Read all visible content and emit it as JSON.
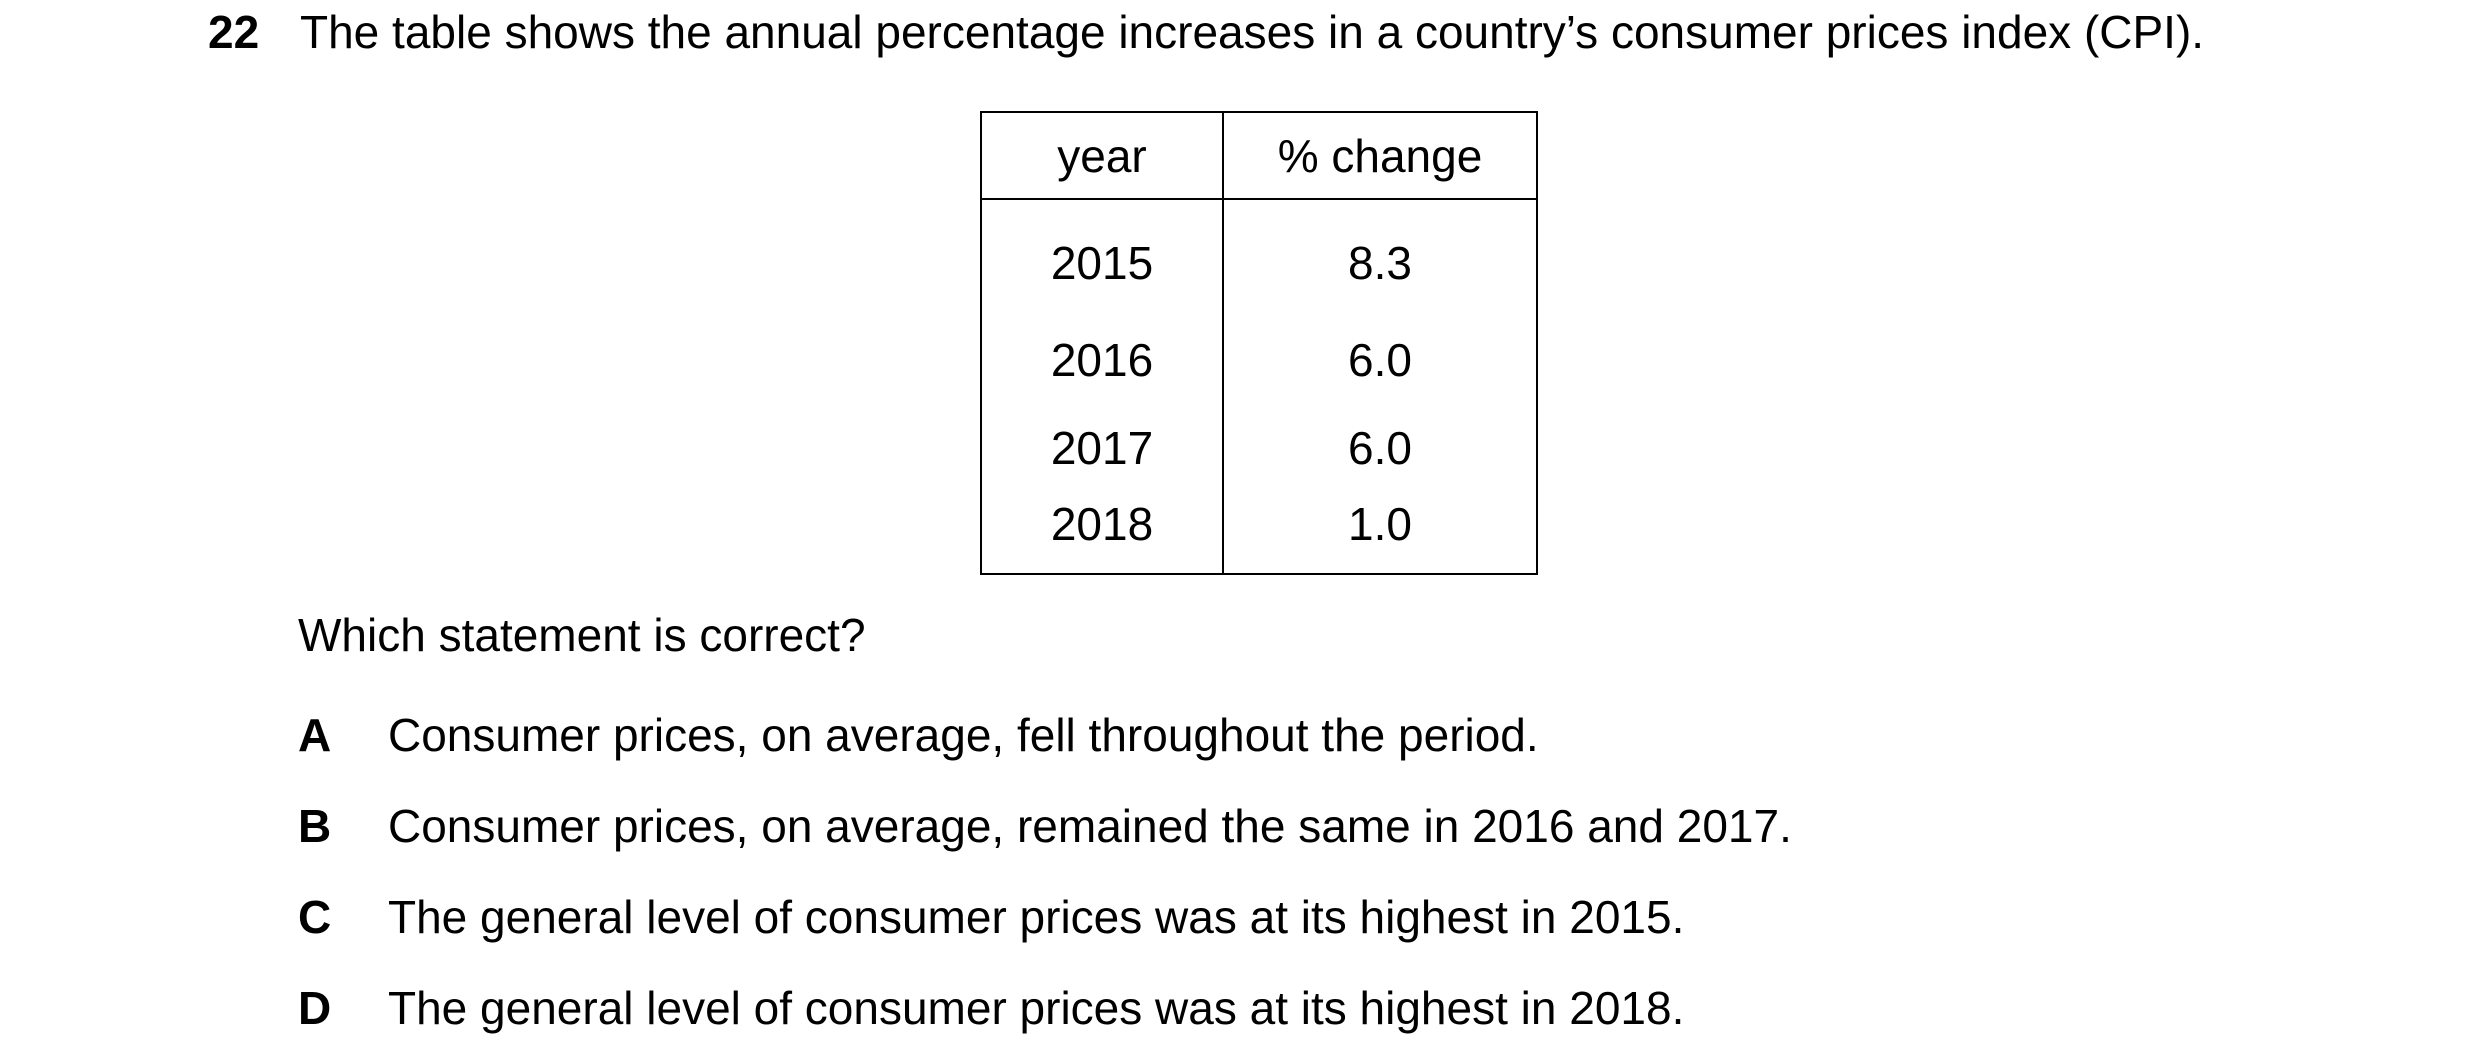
{
  "question": {
    "number": "22",
    "stem": "The table shows the annual percentage increases in a country’s consumer prices index (CPI).",
    "prompt": "Which statement is correct?"
  },
  "table": {
    "headers": [
      "year",
      "% change"
    ],
    "rows": [
      [
        "2015",
        "8.3"
      ],
      [
        "2016",
        "6.0"
      ],
      [
        "2017",
        "6.0"
      ],
      [
        "2018",
        "1.0"
      ]
    ]
  },
  "options": [
    {
      "letter": "A",
      "text": "Consumer prices, on average, fell throughout the period."
    },
    {
      "letter": "B",
      "text": "Consumer prices, on average, remained the same in 2016 and 2017."
    },
    {
      "letter": "C",
      "text": "The general level of consumer prices was at its highest in 2015."
    },
    {
      "letter": "D",
      "text": "The general level of consumer prices was at its highest in 2018."
    }
  ]
}
